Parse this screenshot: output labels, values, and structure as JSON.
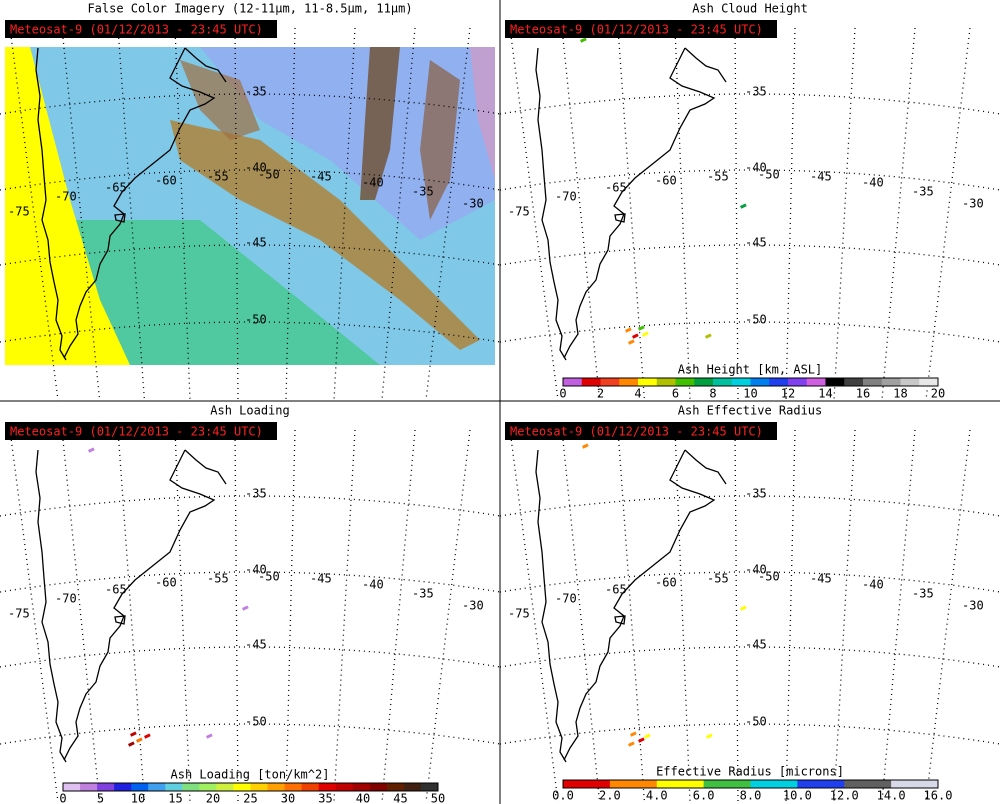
{
  "panels": [
    {
      "title": "False Color Imagery (12-11μm, 11-8.5μm, 11μm)",
      "label": "Meteosat-9 (01/12/2013 - 23:45 UTC)"
    },
    {
      "title": "Ash Cloud Height",
      "label": "Meteosat-9 (01/12/2013 - 23:45 UTC)",
      "colorbar": {
        "title": "Ash Height [km, ASL]",
        "ticks": [
          "0",
          "2",
          "4",
          "6",
          "8",
          "10",
          "12",
          "14",
          "16",
          "18",
          "20"
        ]
      }
    },
    {
      "title": "Ash Loading",
      "label": "Meteosat-9 (01/12/2013 - 23:45 UTC)",
      "colorbar": {
        "title": "Ash Loading [ton/km^2]",
        "ticks": [
          "0",
          "5",
          "10",
          "15",
          "20",
          "25",
          "30",
          "35",
          "40",
          "45",
          "50"
        ]
      }
    },
    {
      "title": "Ash Effective Radius",
      "label": "Meteosat-9 (01/12/2013 - 23:45 UTC)",
      "colorbar": {
        "title": "Effective Radius [microns]",
        "ticks": [
          "0.0",
          "2.0",
          "4.0",
          "6.0",
          "8.0",
          "10.0",
          "12.0",
          "14.0",
          "16.0"
        ]
      }
    }
  ],
  "grid_labels": [
    "-35",
    "-40",
    "-45",
    "-50",
    "-65",
    "-60",
    "-55",
    "-50",
    "-45",
    "-40",
    "-35",
    "-30",
    "-70",
    "-75"
  ]
}
